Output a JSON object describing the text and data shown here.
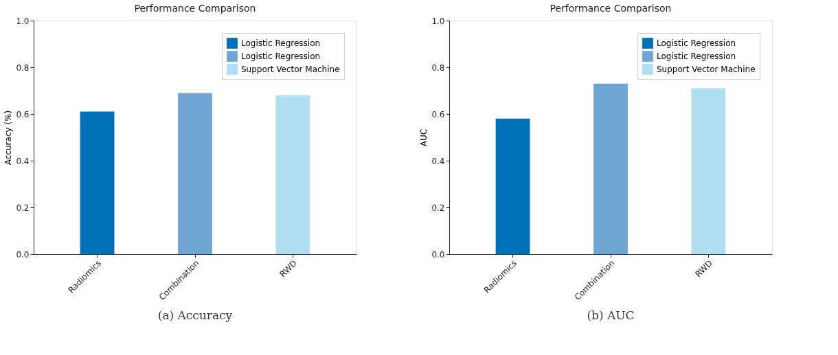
{
  "chart_data": [
    {
      "type": "bar",
      "title": "Performance Comparison",
      "ylabel": "Accuracy (%)",
      "categories": [
        "Radiomics",
        "Combination",
        "RWD"
      ],
      "series": [
        {
          "name": "Logistic Regression",
          "color": "#0070b8",
          "values": [
            0.61,
            null,
            null
          ]
        },
        {
          "name": "Logistic Regression",
          "color": "#6fa6d3",
          "values": [
            null,
            0.69,
            null
          ]
        },
        {
          "name": "Support Vector Machine",
          "color": "#b0dff2",
          "values": [
            null,
            null,
            0.68
          ]
        }
      ],
      "ylim": [
        0,
        1.0
      ],
      "yticks": [
        {
          "value": 0,
          "label": "0.0"
        },
        {
          "value": 0.2,
          "label": "0.2"
        },
        {
          "value": 0.4,
          "label": "0.4"
        },
        {
          "value": 0.6,
          "label": "0.6"
        },
        {
          "value": 0.8,
          "label": "0.8"
        },
        {
          "value": 1.0,
          "label": "1.0"
        }
      ],
      "legend": "top right",
      "grid": false,
      "annotations": [
        "(a) Accuracy"
      ]
    },
    {
      "type": "bar",
      "title": "Performance Comparison",
      "ylabel": "AUC",
      "categories": [
        "Radiomics",
        "Combination",
        "RWD"
      ],
      "series": [
        {
          "name": "Logistic Regression",
          "color": "#0070b8",
          "values": [
            0.58,
            null,
            null
          ]
        },
        {
          "name": "Logistic Regression",
          "color": "#6fa6d3",
          "values": [
            null,
            0.73,
            null
          ]
        },
        {
          "name": "Support Vector Machine",
          "color": "#b0dff2",
          "values": [
            null,
            null,
            0.71
          ]
        }
      ],
      "ylim": [
        0,
        1.0
      ],
      "yticks": [
        {
          "value": 0,
          "label": "0.0"
        },
        {
          "value": 0.2,
          "label": "0.2"
        },
        {
          "value": 0.4,
          "label": "0.4"
        },
        {
          "value": 0.6,
          "label": "0.6"
        },
        {
          "value": 0.8,
          "label": "0.8"
        },
        {
          "value": 1.0,
          "label": "1.0"
        }
      ],
      "legend": "top right",
      "grid": false,
      "annotations": [
        "(b) AUC"
      ]
    }
  ]
}
